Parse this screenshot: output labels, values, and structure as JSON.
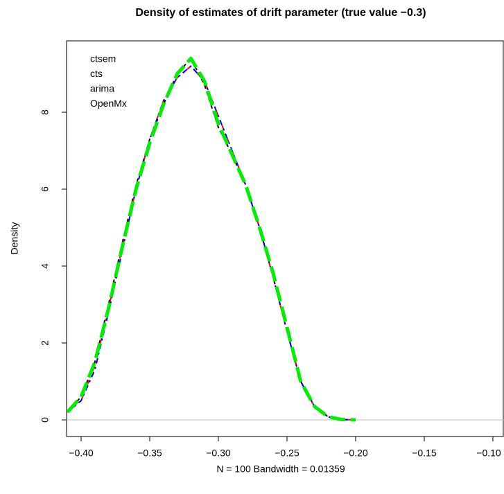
{
  "chart_data": {
    "type": "line",
    "title": "Density of estimates of drift parameter (true value −0.3)",
    "x_label": "N = 100   Bandwidth = 0.01359",
    "y_label": "Density",
    "x": [
      -0.41,
      -0.4,
      -0.39,
      -0.38,
      -0.37,
      -0.36,
      -0.35,
      -0.34,
      -0.33,
      -0.32,
      -0.31,
      -0.3,
      -0.29,
      -0.28,
      -0.27,
      -0.26,
      -0.25,
      -0.24,
      -0.23,
      -0.22,
      -0.21,
      -0.2
    ],
    "series": [
      {
        "name": "ctsem",
        "color": "#000000",
        "values": [
          0.2,
          0.6,
          1.5,
          3.0,
          4.6,
          6.1,
          7.3,
          8.2,
          9.0,
          9.4,
          8.7,
          7.6,
          6.9,
          6.1,
          5.0,
          3.7,
          2.3,
          1.0,
          0.35,
          0.08,
          0.01,
          0.0
        ]
      },
      {
        "name": "cts",
        "color": "#ff0000",
        "values": [
          0.2,
          0.5,
          1.4,
          2.9,
          4.5,
          6.0,
          7.3,
          8.3,
          8.9,
          9.2,
          8.8,
          7.9,
          7.0,
          6.1,
          5.0,
          3.7,
          2.3,
          1.0,
          0.35,
          0.08,
          0.01,
          0.0
        ]
      },
      {
        "name": "arima",
        "color": "#0000ff",
        "values": [
          0.2,
          0.5,
          1.3,
          2.8,
          4.4,
          6.0,
          7.3,
          8.3,
          8.9,
          9.2,
          8.8,
          7.9,
          7.0,
          6.1,
          5.0,
          3.7,
          2.3,
          1.0,
          0.35,
          0.08,
          0.01,
          0.0
        ]
      },
      {
        "name": "OpenMx",
        "color": "#00ee00",
        "values": [
          0.2,
          0.6,
          1.5,
          2.9,
          4.5,
          6.0,
          7.2,
          8.2,
          9.0,
          9.4,
          8.8,
          7.7,
          6.9,
          6.1,
          5.0,
          3.8,
          2.4,
          1.0,
          0.35,
          0.08,
          0.01,
          0.0
        ]
      }
    ],
    "xlim": [
      -0.4106,
      -0.0919
    ],
    "ylim": [
      -0.432,
      9.856
    ],
    "xticks": [
      {
        "value": -0.4,
        "label": "−0.40"
      },
      {
        "value": -0.35,
        "label": "−0.35"
      },
      {
        "value": -0.3,
        "label": "−0.30"
      },
      {
        "value": -0.25,
        "label": "−0.25"
      },
      {
        "value": -0.2,
        "label": "−0.20"
      },
      {
        "value": -0.15,
        "label": "−0.15"
      },
      {
        "value": -0.1,
        "label": "−0.10"
      }
    ],
    "yticks": [
      0,
      2,
      4,
      6,
      8
    ],
    "line_style": "dashed"
  }
}
